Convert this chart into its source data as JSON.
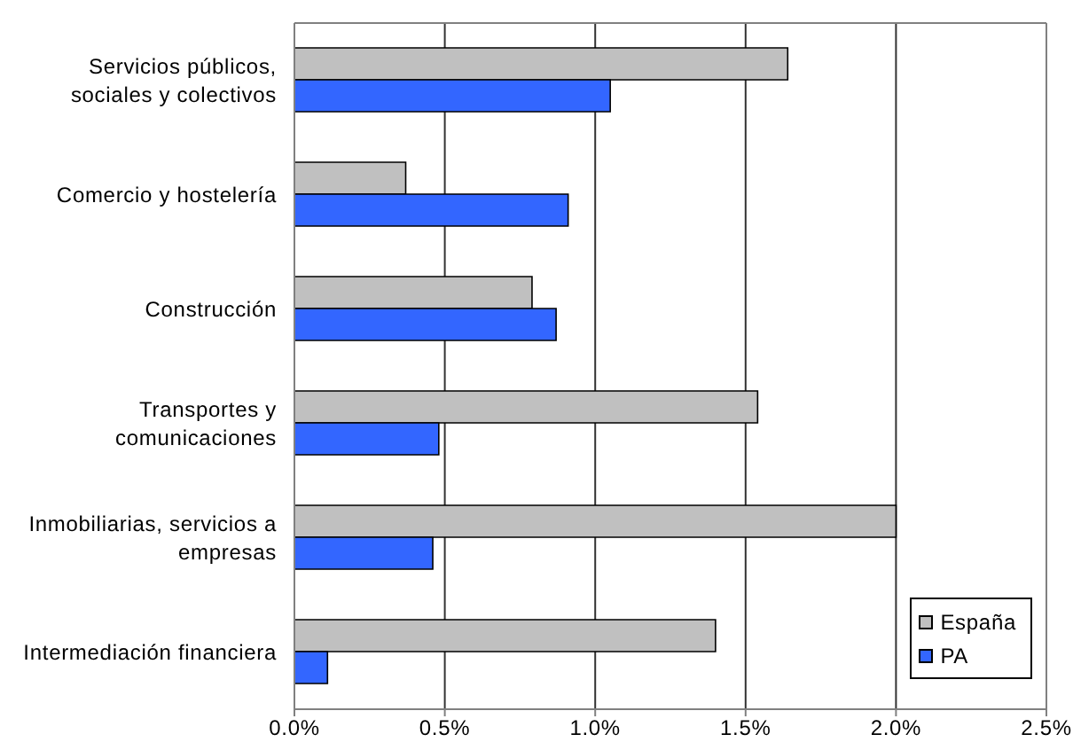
{
  "chart_data": {
    "type": "bar",
    "orientation": "horizontal",
    "categories": [
      "Servicios públicos, sociales y colectivos",
      "Comercio y hostelería",
      "Construcción",
      "Transportes y comunicaciones",
      "Inmobiliarias, servicios a empresas",
      "Intermediación financiera"
    ],
    "series": [
      {
        "name": "España",
        "color": "#c0c0c0",
        "values": [
          1.64,
          0.37,
          0.79,
          1.54,
          2.0,
          1.4
        ]
      },
      {
        "name": "PA",
        "color": "#3366ff",
        "values": [
          1.05,
          0.91,
          0.87,
          0.48,
          0.46,
          0.11
        ]
      }
    ],
    "xlim": [
      0,
      2.5
    ],
    "xticks": [
      {
        "value": 0,
        "label": "0.0%"
      },
      {
        "value": 0.5,
        "label": "0.5%"
      },
      {
        "value": 1,
        "label": "1.0%"
      },
      {
        "value": 1.5,
        "label": "1.5%"
      },
      {
        "value": 2,
        "label": "2.0%"
      },
      {
        "value": 2.5,
        "label": "2.5%"
      }
    ],
    "grid": "x",
    "legend": "bottom right"
  }
}
